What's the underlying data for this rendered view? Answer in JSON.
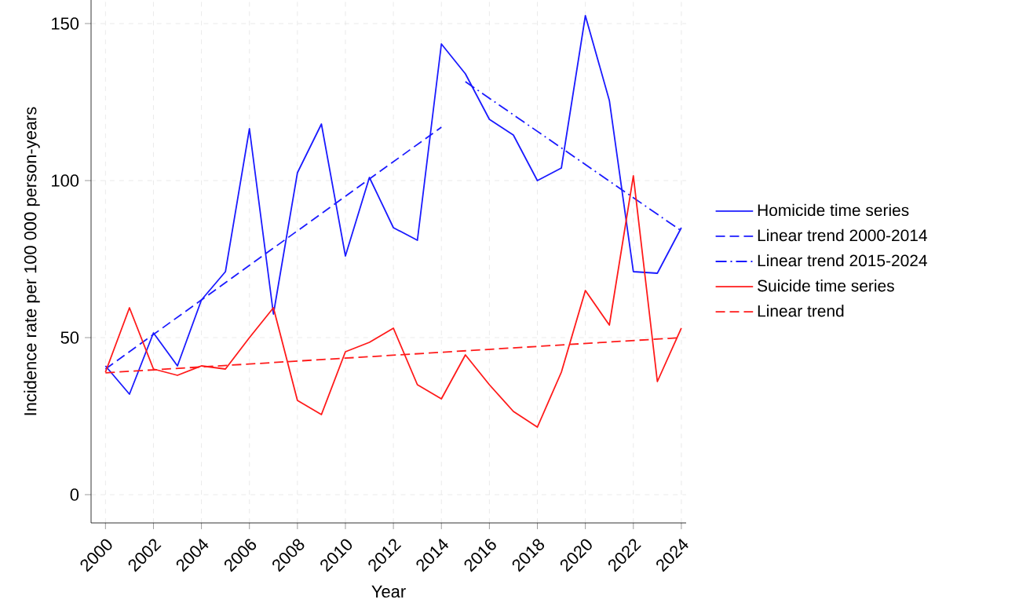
{
  "chart_data": {
    "type": "line",
    "xlabel": "Year",
    "ylabel": "Incidence rate per 100 000 person-years",
    "xlim": [
      1999.4,
      2024.2
    ],
    "ylim": [
      -9,
      157.5
    ],
    "xticks": [
      2000,
      2002,
      2004,
      2006,
      2008,
      2010,
      2012,
      2014,
      2016,
      2018,
      2020,
      2022,
      2024
    ],
    "yticks": [
      0,
      50,
      100,
      150
    ],
    "grid": true,
    "legend": "right",
    "marker": "none",
    "series": [
      {
        "name": "Homicide time series",
        "color": "#1a1aff",
        "line_style": "solid",
        "x": [
          2000,
          2001,
          2002,
          2003,
          2004,
          2005,
          2006,
          2007,
          2008,
          2009,
          2010,
          2011,
          2012,
          2013,
          2014,
          2015,
          2016,
          2017,
          2018,
          2019,
          2020,
          2021,
          2022,
          2023,
          2024
        ],
        "values": [
          41,
          32,
          51.5,
          41,
          62,
          71,
          116.5,
          57.5,
          102.5,
          118,
          76,
          101,
          85,
          81,
          143.5,
          134,
          119.5,
          114.5,
          100,
          104,
          152.5,
          125.5,
          71,
          70.5,
          85
        ]
      },
      {
        "name": "Linear trend 2000-2014",
        "color": "#1a1aff",
        "line_style": "dashed",
        "x": [
          2000,
          2014
        ],
        "values": [
          40,
          117
        ]
      },
      {
        "name": "Linear trend 2015-2024",
        "color": "#1a1aff",
        "line_style": "dashdot",
        "x": [
          2015,
          2024
        ],
        "values": [
          131.5,
          84
        ]
      },
      {
        "name": "Suicide time series",
        "color": "#ff1a1a",
        "line_style": "solid",
        "x": [
          2000,
          2001,
          2002,
          2003,
          2004,
          2005,
          2006,
          2007,
          2008,
          2009,
          2010,
          2011,
          2012,
          2013,
          2014,
          2015,
          2016,
          2017,
          2018,
          2019,
          2020,
          2021,
          2022,
          2023,
          2024
        ],
        "values": [
          39,
          59.5,
          40,
          38,
          41,
          40,
          50,
          59.5,
          30,
          25.5,
          45.5,
          48.5,
          53,
          35,
          30.5,
          44.5,
          35,
          26.5,
          21.5,
          39,
          65,
          54,
          101.5,
          36,
          53
        ]
      },
      {
        "name": "Linear trend",
        "color": "#ff1a1a",
        "line_style": "dashed",
        "x": [
          2000,
          2024
        ],
        "values": [
          38.8,
          50
        ]
      }
    ]
  }
}
